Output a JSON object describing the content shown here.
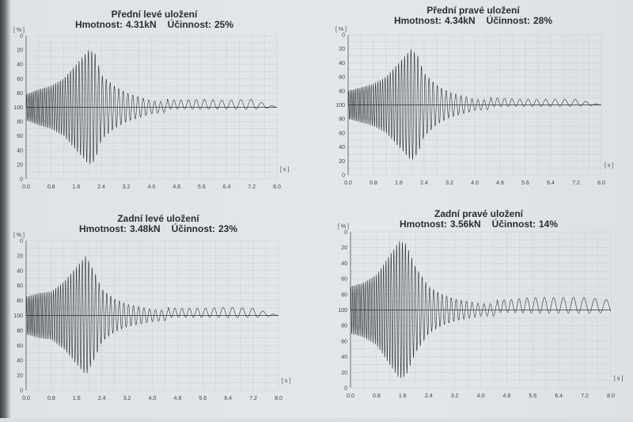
{
  "chart_data": [
    {
      "type": "line",
      "title": "Přední levé uložení",
      "mass_label": "Hmotnost:",
      "mass": "4.31kN",
      "efficiency_label": "Účinnost:",
      "efficiency": "25%",
      "ylabel": "[ % ]",
      "xlabel": "[ s ]",
      "x_ticks": [
        "0.0",
        "0.8",
        "1.6",
        "2.4",
        "3.2",
        "4.0",
        "4.8",
        "5.6",
        "6.4",
        "7.2",
        "8.0"
      ],
      "y_ticks": [
        "0",
        "20",
        "40",
        "60",
        "80",
        "100",
        "80",
        "60",
        "40",
        "20",
        "0"
      ],
      "xlim": [
        0,
        8.0
      ],
      "grid": true,
      "envelope": {
        "t": [
          0,
          0.4,
          0.8,
          1.2,
          1.6,
          2.0,
          2.2,
          2.4,
          2.8,
          3.2,
          4.0,
          4.8,
          5.6,
          6.4,
          7.2,
          8.0
        ],
        "amplitude": [
          18,
          25,
          30,
          40,
          60,
          80,
          75,
          45,
          30,
          20,
          9,
          6,
          7,
          6,
          7,
          0
        ]
      }
    },
    {
      "type": "line",
      "title": "Přední pravé uložení",
      "mass_label": "Hmotnost:",
      "mass": "4.34kN",
      "efficiency_label": "Účinnost:",
      "efficiency": "28%",
      "ylabel": "[ % ]",
      "xlabel": "[ s ]",
      "x_ticks": [
        "0.0",
        "0.8",
        "1.6",
        "2.4",
        "3.2",
        "4.0",
        "4.8",
        "5.6",
        "6.4",
        "7.2",
        "8.0"
      ],
      "y_ticks": [
        "0",
        "20",
        "40",
        "60",
        "80",
        "100",
        "80",
        "60",
        "40",
        "20",
        "0"
      ],
      "xlim": [
        0,
        8.0
      ],
      "grid": true,
      "envelope": {
        "t": [
          0,
          0.4,
          0.8,
          1.2,
          1.6,
          2.0,
          2.2,
          2.4,
          2.8,
          3.2,
          4.0,
          4.8,
          5.6,
          6.4,
          7.2,
          8.0
        ],
        "amplitude": [
          20,
          25,
          30,
          40,
          60,
          80,
          70,
          45,
          28,
          18,
          8,
          6,
          5,
          5,
          5,
          0
        ]
      }
    },
    {
      "type": "line",
      "title": "Zadní levé uložení",
      "mass_label": "Hmotnost:",
      "mass": "3.48kN",
      "efficiency_label": "Účinnost:",
      "efficiency": "23%",
      "ylabel": "[ % ]",
      "xlabel": "[ s ]",
      "x_ticks": [
        "0.0",
        "0.8",
        "1.6",
        "2.4",
        "3.2",
        "4.0",
        "4.8",
        "5.6",
        "6.4",
        "7.2",
        "8.0"
      ],
      "y_ticks": [
        "0",
        "20",
        "40",
        "60",
        "80",
        "100",
        "80",
        "60",
        "40",
        "20",
        "0"
      ],
      "xlim": [
        0,
        8.0
      ],
      "grid": true,
      "envelope": {
        "t": [
          0,
          0.4,
          0.8,
          1.2,
          1.6,
          1.9,
          2.2,
          2.4,
          2.8,
          3.2,
          4.0,
          4.8,
          5.6,
          6.4,
          7.2,
          8.0
        ],
        "amplitude": [
          25,
          30,
          32,
          45,
          65,
          80,
          55,
          35,
          22,
          15,
          8,
          6,
          6,
          7,
          6,
          0
        ]
      }
    },
    {
      "type": "line",
      "title": "Zadní pravé uložení",
      "mass_label": "Hmotnost:",
      "mass": "3.56kN",
      "efficiency_label": "Účinnost:",
      "efficiency": "14%",
      "ylabel": "[ % ]",
      "xlabel": "[ s ]",
      "x_ticks": [
        "0.0",
        "0.8",
        "1.6",
        "2.4",
        "3.2",
        "4.0",
        "4.8",
        "5.6",
        "6.4",
        "7.2",
        "8.0"
      ],
      "y_ticks": [
        "0",
        "20",
        "40",
        "60",
        "80",
        "100",
        "80",
        "60",
        "40",
        "20",
        "0"
      ],
      "xlim": [
        0,
        8.0
      ],
      "grid": true,
      "envelope": {
        "t": [
          0,
          0.4,
          0.8,
          1.2,
          1.5,
          1.7,
          2.0,
          2.4,
          2.8,
          3.2,
          4.0,
          4.8,
          5.6,
          6.4,
          7.2,
          8.0
        ],
        "amplitude": [
          30,
          35,
          45,
          70,
          88,
          85,
          55,
          30,
          20,
          14,
          8,
          8,
          10,
          10,
          10,
          8
        ]
      }
    }
  ]
}
